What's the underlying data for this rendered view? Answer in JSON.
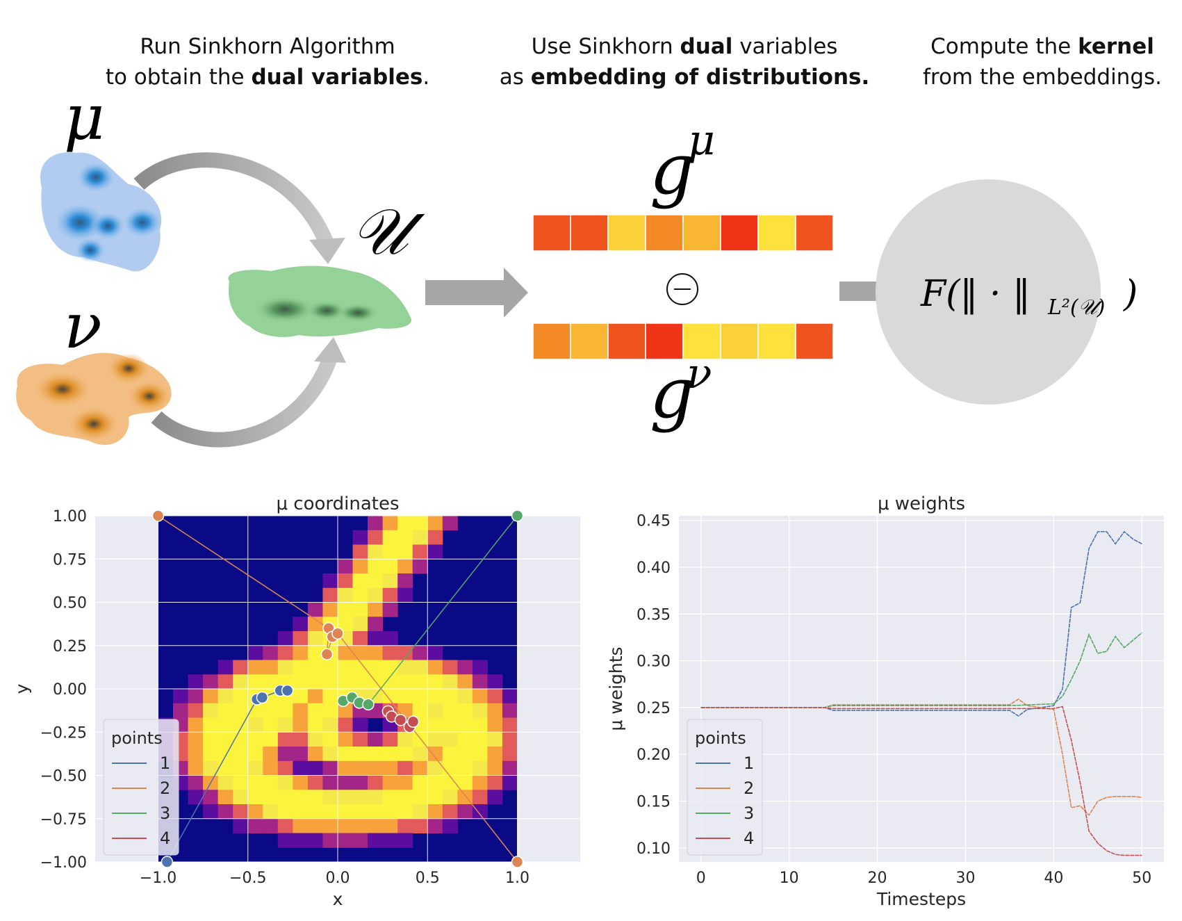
{
  "headers": {
    "step1": {
      "l1_pre": "Run Sinkhorn Algorithm",
      "l2_pre": "to obtain the ",
      "l2_bold": "dual variables",
      "l2_post": "."
    },
    "step2": {
      "l1_pre": "Use Sinkhorn ",
      "l1_bold": "dual",
      "l1_post": " variables",
      "l2_pre": "as ",
      "l2_bold": "embedding of distributions."
    },
    "step3": {
      "l1_pre": "Compute the ",
      "l1_bold": "kernel",
      "l2_pre": "from the embeddings."
    }
  },
  "symbols": {
    "mu": "μ",
    "nu": "ν",
    "U": "𝒰",
    "g": "g",
    "minus": "⊖",
    "kernel_F": "F(‖ · ‖",
    "kernel_sub": "L²(𝒰)",
    "kernel_close": ")"
  },
  "embeddings": {
    "g_mu_colors": [
      "#f0541e",
      "#f0541e",
      "#fbd13a",
      "#f48a26",
      "#f9b632",
      "#ef3417",
      "#fde13d",
      "#f0541e"
    ],
    "g_nu_colors": [
      "#f48a26",
      "#f9b632",
      "#f0541e",
      "#ef3417",
      "#fde13d",
      "#fbd13a",
      "#fde13d",
      "#f0541e"
    ]
  },
  "chart_data": [
    {
      "type": "scatter",
      "title": "μ coordinates",
      "xlabel": "x",
      "ylabel": "y",
      "xlim": [
        -1.35,
        1.35
      ],
      "ylim": [
        -1.0,
        1.0
      ],
      "xticks": [
        "−1.0",
        "−0.5",
        "0.0",
        "0.5",
        "1.0"
      ],
      "yticks": [
        "1.00",
        "0.75",
        "0.50",
        "0.25",
        "0.00",
        "−0.25",
        "−0.50",
        "−0.75",
        "−1.00"
      ],
      "legend_title": "points",
      "legend_position": "lower-left",
      "series": [
        {
          "name": "1",
          "color": "#4c72b0",
          "x": [
            -0.95,
            -0.45,
            -0.42,
            -0.32,
            -0.28
          ],
          "y": [
            -1.0,
            -0.06,
            -0.05,
            -0.01,
            -0.01
          ]
        },
        {
          "name": "2",
          "color": "#dd8452",
          "x": [
            -1.0,
            -0.05,
            -0.06,
            -0.03,
            0.0,
            1.0
          ],
          "y": [
            1.0,
            0.35,
            0.2,
            0.3,
            0.32,
            -1.0
          ]
        },
        {
          "name": "3",
          "color": "#55a868",
          "x": [
            0.03,
            0.08,
            0.12,
            0.17,
            1.0
          ],
          "y": [
            -0.07,
            -0.05,
            -0.08,
            -0.09,
            1.0
          ]
        },
        {
          "name": "4",
          "color": "#c44e52",
          "x": [
            0.28,
            0.3,
            0.35,
            0.4,
            0.42
          ],
          "y": [
            -0.13,
            -0.16,
            -0.18,
            -0.22,
            -0.19
          ]
        }
      ]
    },
    {
      "type": "line",
      "title": "μ weights",
      "xlabel": "Timesteps",
      "ylabel": "μ weights",
      "xlim": [
        -2.5,
        52.5
      ],
      "ylim": [
        0.085,
        0.455
      ],
      "xticks": [
        0,
        10,
        20,
        30,
        40,
        50
      ],
      "yticks": [
        "0.45",
        "0.40",
        "0.35",
        "0.30",
        "0.25",
        "0.20",
        "0.15",
        "0.10"
      ],
      "legend_title": "points",
      "legend_position": "lower-left",
      "series": [
        {
          "name": "1",
          "color": "#4c72b0",
          "x": [
            0,
            14,
            15,
            35,
            36,
            37,
            40,
            41,
            42,
            43,
            44,
            45,
            46,
            47,
            48,
            49,
            50
          ],
          "y": [
            0.25,
            0.25,
            0.247,
            0.247,
            0.241,
            0.248,
            0.252,
            0.27,
            0.357,
            0.362,
            0.42,
            0.438,
            0.438,
            0.425,
            0.438,
            0.43,
            0.425
          ]
        },
        {
          "name": "2",
          "color": "#dd8452",
          "x": [
            0,
            14,
            15,
            35,
            36,
            37,
            40,
            41,
            42,
            43,
            44,
            45,
            46,
            47,
            48,
            49,
            50
          ],
          "y": [
            0.25,
            0.25,
            0.253,
            0.253,
            0.259,
            0.252,
            0.248,
            0.2,
            0.143,
            0.145,
            0.135,
            0.15,
            0.154,
            0.155,
            0.155,
            0.155,
            0.154
          ]
        },
        {
          "name": "3",
          "color": "#55a868",
          "x": [
            0,
            14,
            15,
            35,
            40,
            41,
            42,
            43,
            44,
            45,
            46,
            47,
            48,
            49,
            50
          ],
          "y": [
            0.25,
            0.25,
            0.252,
            0.252,
            0.254,
            0.262,
            0.28,
            0.3,
            0.328,
            0.308,
            0.31,
            0.326,
            0.314,
            0.322,
            0.33
          ]
        },
        {
          "name": "4",
          "color": "#c44e52",
          "x": [
            0,
            14,
            15,
            35,
            40,
            41,
            42,
            43,
            44,
            45,
            46,
            47,
            48,
            49,
            50
          ],
          "y": [
            0.25,
            0.25,
            0.249,
            0.249,
            0.249,
            0.251,
            0.215,
            0.17,
            0.118,
            0.105,
            0.097,
            0.093,
            0.092,
            0.092,
            0.092
          ]
        }
      ]
    }
  ]
}
